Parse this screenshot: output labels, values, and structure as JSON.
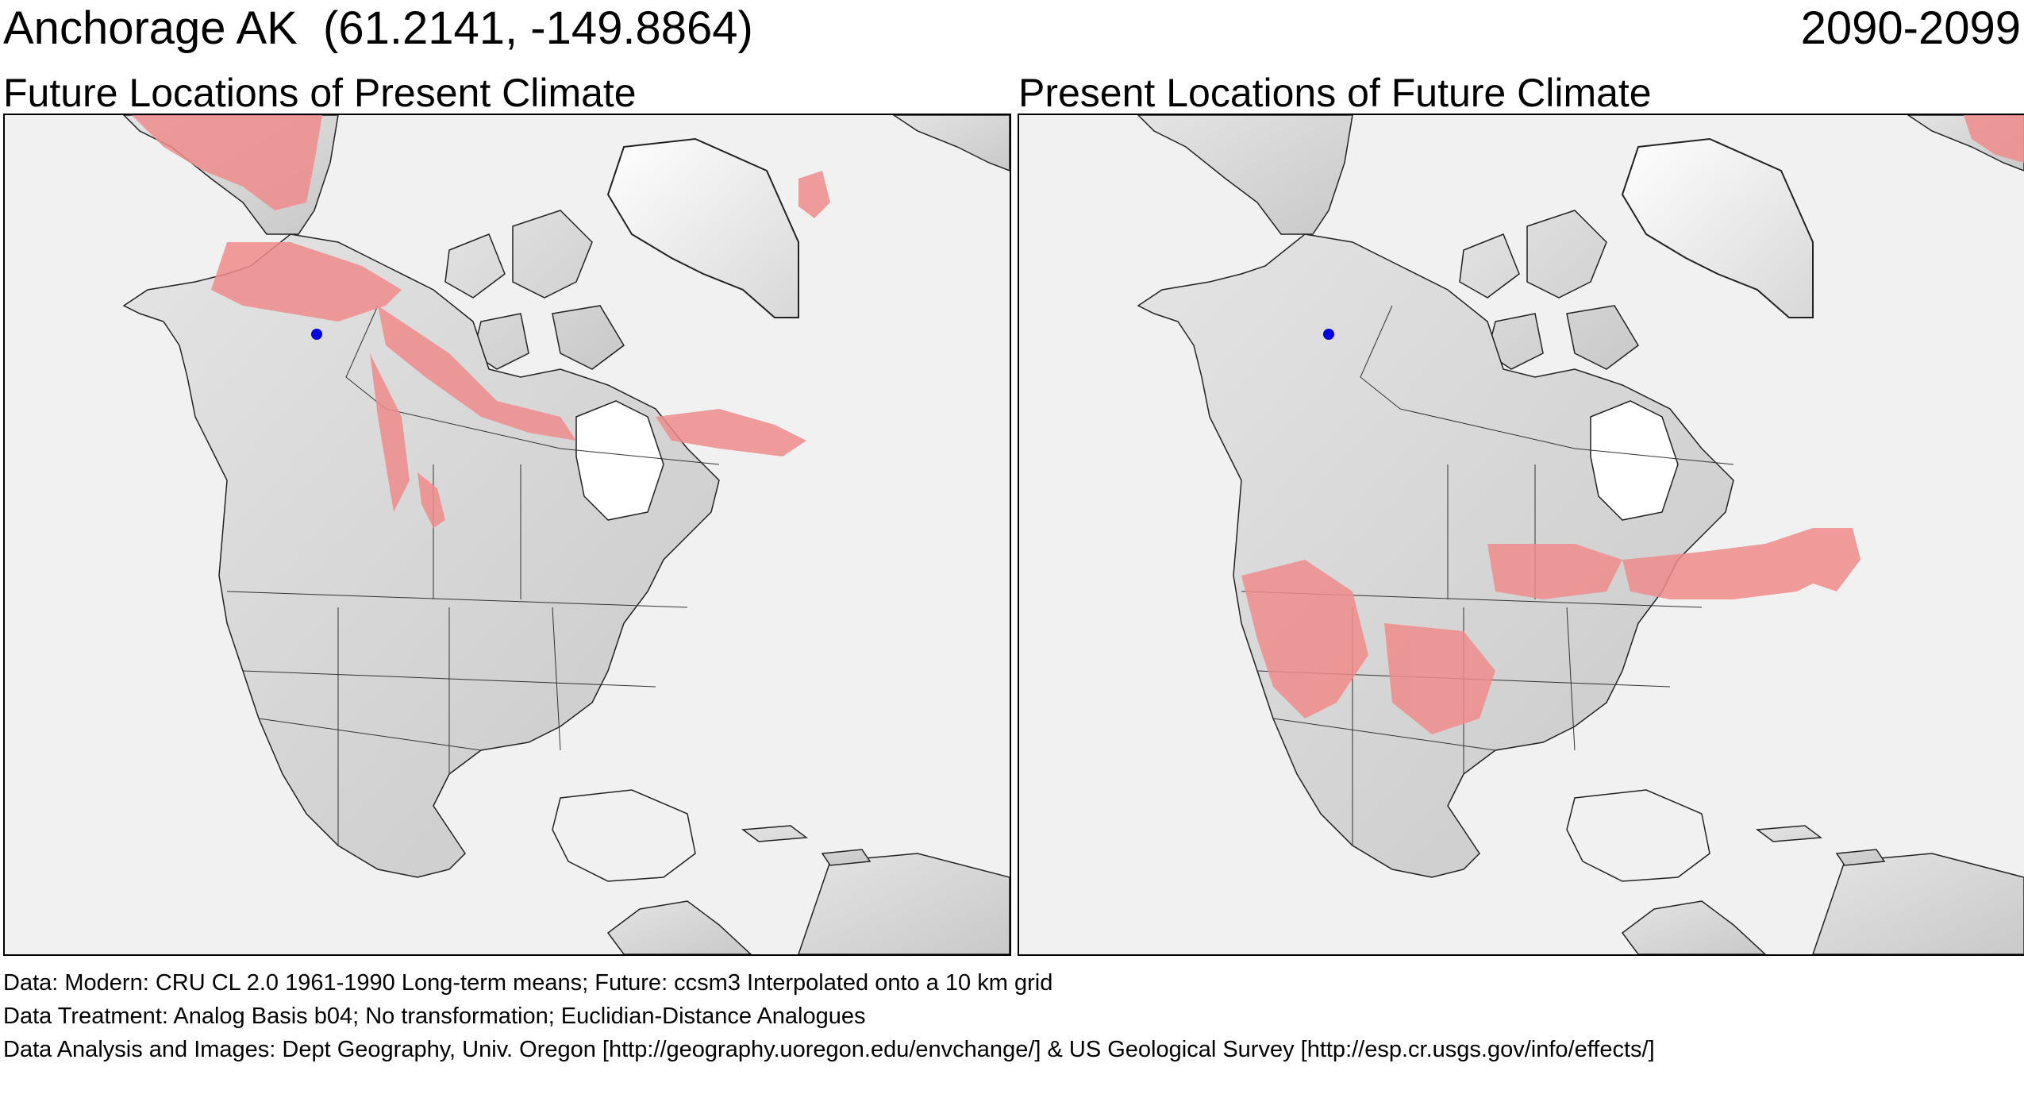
{
  "header": {
    "location": "Anchorage AK  (61.2141, -149.8864)",
    "period": "2090-2099"
  },
  "panels": [
    {
      "title": "Future Locations of Present Climate",
      "analog_color": "#f08c8c",
      "marker_color": "#0000dd"
    },
    {
      "title": "Present Locations of Future Climate",
      "analog_color": "#f08c8c",
      "marker_color": "#0000dd"
    }
  ],
  "footer": {
    "data_line": "Data:  Modern: CRU CL 2.0 1961-1990 Long-term means; Future: ccsm3 Interpolated onto a 10 km grid",
    "treatment_line": "Data Treatment:  Analog Basis b04; No transformation; Euclidian-Distance Analogues",
    "analysis_line": "Data Analysis and Images:  Dept Geography, Univ. Oregon [http://geography.uoregon.edu/envchange/] & US Geological Survey [http://esp.cr.usgs.gov/info/effects/]"
  },
  "map_colors": {
    "ocean": "#f1f1f1",
    "land": "#d6d6d6",
    "ice": "#ffffff",
    "border": "#222222"
  }
}
